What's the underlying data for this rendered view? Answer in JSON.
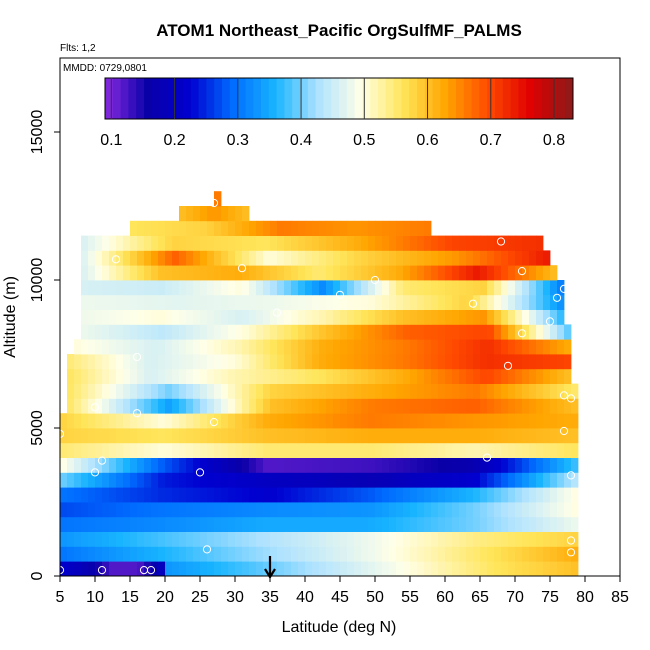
{
  "chart_data": {
    "type": "heatmap",
    "title": "ATOM1 Northeast_Pacific OrgSulfMF_PALMS",
    "notes": [
      "Flts: 1,2",
      "MMDD: 0729,0801"
    ],
    "xlabel": "Latitude (deg N)",
    "ylabel": "Altitude (m)",
    "xlim": [
      5,
      85
    ],
    "ylim": [
      0,
      17500
    ],
    "xticks": [
      5,
      10,
      15,
      20,
      25,
      30,
      35,
      40,
      45,
      50,
      55,
      60,
      65,
      70,
      75,
      80,
      85
    ],
    "yticks": [
      0,
      5000,
      10000,
      15000
    ],
    "colorbar": {
      "min": 0.09,
      "max": 0.83,
      "ticks": [
        0.1,
        0.2,
        0.3,
        0.4,
        0.5,
        0.6,
        0.7,
        0.8
      ],
      "colors": [
        "#8a2be2",
        "#0a00a8",
        "#0000d0",
        "#006cff",
        "#18b4ff",
        "#aee2ff",
        "#ffffe8",
        "#ffe55a",
        "#ffa500",
        "#ff4a00",
        "#e00000",
        "#8b1a1a"
      ]
    },
    "grid": false,
    "marker_latitude": 35,
    "x_step": 1,
    "z_step": 500,
    "layers": [
      {
        "z": [
          0,
          500
        ],
        "x": [
          5,
          20
        ],
        "v": [
          0.22,
          0.18,
          0.12,
          0.12,
          0.2
        ]
      },
      {
        "z": [
          0,
          500
        ],
        "x": [
          20,
          79
        ],
        "v": [
          0.33,
          0.38,
          0.44,
          0.5,
          0.56,
          0.6
        ]
      },
      {
        "z": [
          500,
          1000
        ],
        "x": [
          5,
          79
        ],
        "v": [
          0.3,
          0.36,
          0.42,
          0.48,
          0.55,
          0.62
        ]
      },
      {
        "z": [
          1000,
          1500
        ],
        "x": [
          5,
          79
        ],
        "v": [
          0.33,
          0.38,
          0.43,
          0.48,
          0.54,
          0.58
        ]
      },
      {
        "z": [
          1500,
          2000
        ],
        "x": [
          5,
          79
        ],
        "v": [
          0.3,
          0.32,
          0.35,
          0.35,
          0.4,
          0.48
        ]
      },
      {
        "z": [
          2000,
          2500
        ],
        "x": [
          5,
          79
        ],
        "v": [
          0.27,
          0.3,
          0.32,
          0.33,
          0.4,
          0.5
        ]
      },
      {
        "z": [
          2500,
          3000
        ],
        "x": [
          5,
          79
        ],
        "v": [
          0.3,
          0.25,
          0.22,
          0.28,
          0.36,
          0.5
        ]
      },
      {
        "z": [
          3000,
          3500
        ],
        "x": [
          5,
          79
        ],
        "v": [
          0.4,
          0.24,
          0.2,
          0.18,
          0.22,
          0.44
        ]
      },
      {
        "z": [
          3500,
          4000
        ],
        "x": [
          5,
          79
        ],
        "v": [
          0.5,
          0.28,
          0.12,
          0.13,
          0.17,
          0.38
        ]
      },
      {
        "z": [
          4000,
          4500
        ],
        "x": [
          5,
          79
        ],
        "v": [
          0.55,
          0.5,
          0.55,
          0.55,
          0.52,
          0.56
        ]
      },
      {
        "z": [
          4500,
          5000
        ],
        "x": [
          5,
          79
        ],
        "v": [
          0.58,
          0.56,
          0.6,
          0.62,
          0.62,
          0.6
        ]
      },
      {
        "z": [
          5000,
          5500
        ],
        "x": [
          5,
          79
        ],
        "v": [
          0.58,
          0.5,
          0.62,
          0.66,
          0.64,
          0.62
        ]
      },
      {
        "z": [
          5500,
          6000
        ],
        "x": [
          6,
          79
        ],
        "v": [
          0.56,
          0.34,
          0.6,
          0.66,
          0.68,
          0.6
        ]
      },
      {
        "z": [
          6000,
          6500
        ],
        "x": [
          6,
          79
        ],
        "v": [
          0.56,
          0.4,
          0.58,
          0.62,
          0.66,
          0.55
        ]
      },
      {
        "z": [
          6500,
          7000
        ],
        "x": [
          6,
          78
        ],
        "v": [
          0.56,
          0.46,
          0.52,
          0.56,
          0.62,
          0.7,
          0.6
        ]
      },
      {
        "z": [
          7000,
          7500
        ],
        "x": [
          6,
          78
        ],
        "v": [
          0.55,
          0.46,
          0.5,
          0.62,
          0.66,
          0.72,
          0.7
        ]
      },
      {
        "z": [
          7500,
          8000
        ],
        "x": [
          7,
          78
        ],
        "v": [
          0.5,
          0.46,
          0.52,
          0.62,
          0.66,
          0.72,
          0.62
        ]
      },
      {
        "z": [
          8000,
          8500
        ],
        "x": [
          8,
          78
        ],
        "v": [
          0.48,
          0.44,
          0.5,
          0.6,
          0.68,
          0.7,
          0.38
        ]
      },
      {
        "z": [
          8500,
          9000
        ],
        "x": [
          8,
          77
        ],
        "v": [
          0.48,
          0.5,
          0.46,
          0.52,
          0.6,
          0.64,
          0.36
        ]
      },
      {
        "z": [
          9000,
          9500
        ],
        "x": [
          8,
          77
        ],
        "v": [
          0.48,
          0.47,
          0.48,
          0.5,
          0.58,
          0.32
        ]
      },
      {
        "z": [
          9500,
          10000
        ],
        "x": [
          8,
          77
        ],
        "v": [
          0.46,
          0.45,
          0.5,
          0.32,
          0.55,
          0.58,
          0.3
        ]
      },
      {
        "z": [
          10000,
          10500
        ],
        "x": [
          8,
          76
        ],
        "v": [
          0.46,
          0.6,
          0.62,
          0.55,
          0.62,
          0.74,
          0.6
        ]
      },
      {
        "z": [
          10500,
          11000
        ],
        "x": [
          8,
          75
        ],
        "v": [
          0.46,
          0.68,
          0.5,
          0.58,
          0.64,
          0.74
        ]
      },
      {
        "z": [
          11000,
          11500
        ],
        "x": [
          8,
          74
        ],
        "v": [
          0.46,
          0.58,
          0.56,
          0.62,
          0.7,
          0.72
        ]
      },
      {
        "z": [
          11500,
          12000
        ],
        "x": [
          15,
          58
        ],
        "v": [
          0.56,
          0.58,
          0.66,
          0.64,
          0.66
        ]
      },
      {
        "z": [
          12000,
          12500
        ],
        "x": [
          22,
          32
        ],
        "v": [
          0.6,
          0.64,
          0.6
        ]
      },
      {
        "z": [
          12500,
          13000
        ],
        "x": [
          27,
          28
        ],
        "v": [
          0.66
        ]
      }
    ],
    "samples": [
      [
        5,
        200
      ],
      [
        17,
        200
      ],
      [
        18,
        200
      ],
      [
        11,
        200
      ],
      [
        26,
        900
      ],
      [
        78,
        800
      ],
      [
        78,
        1200
      ],
      [
        78,
        3400
      ],
      [
        66,
        4000
      ],
      [
        25,
        3500
      ],
      [
        10,
        3500
      ],
      [
        11,
        3900
      ],
      [
        5,
        4800
      ],
      [
        16,
        5500
      ],
      [
        10,
        5700
      ],
      [
        27,
        5200
      ],
      [
        77,
        4900
      ],
      [
        77,
        6100
      ],
      [
        78,
        6000
      ],
      [
        69,
        7100
      ],
      [
        71,
        8200
      ],
      [
        16,
        7400
      ],
      [
        75,
        8600
      ],
      [
        36,
        8900
      ],
      [
        64,
        9200
      ],
      [
        45,
        9500
      ],
      [
        50,
        10000
      ],
      [
        31,
        10400
      ],
      [
        76,
        9400
      ],
      [
        77,
        9700
      ],
      [
        71,
        10300
      ],
      [
        68,
        11300
      ],
      [
        7,
        11200
      ],
      [
        13,
        10700
      ],
      [
        27,
        12600
      ]
    ]
  }
}
